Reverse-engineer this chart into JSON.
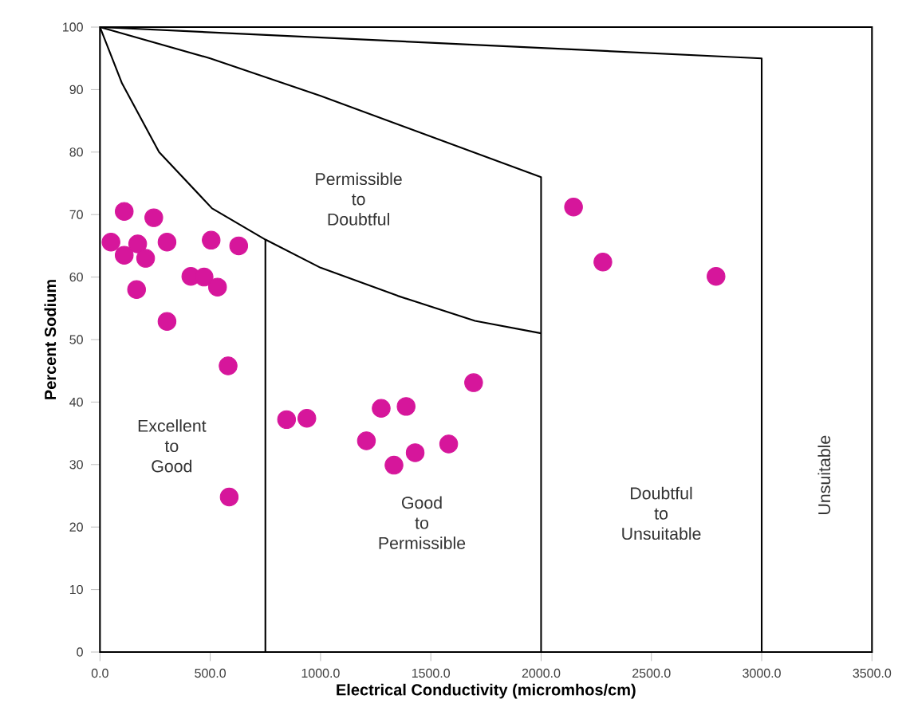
{
  "chart_data": {
    "type": "scatter",
    "xlabel": "Electrical Conductivity (micromhos/cm)",
    "ylabel": "Percent Sodium",
    "xlim": [
      0,
      3500
    ],
    "ylim": [
      0,
      100
    ],
    "xticks": [
      {
        "value": 0,
        "label": "0.0"
      },
      {
        "value": 500,
        "label": "500.0"
      },
      {
        "value": 1000,
        "label": "1000.0"
      },
      {
        "value": 1500,
        "label": "1500.0"
      },
      {
        "value": 2000,
        "label": "2000.0"
      },
      {
        "value": 2500,
        "label": "2500.0"
      },
      {
        "value": 3000,
        "label": "3000.0"
      },
      {
        "value": 3500,
        "label": "3500.0"
      }
    ],
    "yticks": [
      0,
      10,
      20,
      30,
      40,
      50,
      60,
      70,
      80,
      90,
      100
    ],
    "grid": false,
    "series": [
      {
        "color": "#d6169b",
        "marker": "circle",
        "x": [
          50,
          110,
          110,
          244,
          304,
          171,
          207,
          166,
          304,
          412,
          472,
          533,
          504,
          629,
          581,
          586,
          846,
          938,
          1208,
          1275,
          1388,
          1333,
          1429,
          1581,
          1694,
          2147,
          2280,
          2793
        ],
        "values": [
          65.6,
          70.5,
          63.5,
          69.5,
          65.6,
          65.3,
          63,
          58,
          52.9,
          60.1,
          60,
          58.4,
          65.9,
          65,
          45.8,
          24.8,
          37.2,
          37.4,
          33.8,
          39,
          39.3,
          29.9,
          31.9,
          33.3,
          43.1,
          71.2,
          62.4,
          60.1
        ]
      },
      {
        "type": "line",
        "color": "#000000",
        "marker": "none",
        "x": [
          0,
          100,
          268,
          508,
          750,
          1000,
          1350,
          1700,
          2000
        ],
        "values": [
          100,
          91,
          80,
          71,
          66,
          61.5,
          57,
          53,
          51
        ]
      },
      {
        "type": "line",
        "color": "#000000",
        "marker": "none",
        "x": [
          0,
          500,
          1000,
          1500,
          2000,
          2000
        ],
        "values": [
          100,
          95,
          89,
          82.5,
          76,
          0
        ]
      },
      {
        "type": "line",
        "color": "#000000",
        "marker": "none",
        "x": [
          0,
          3000,
          3000
        ],
        "values": [
          100,
          95,
          0
        ]
      },
      {
        "type": "line",
        "color": "#000000",
        "marker": "none",
        "x": [
          750,
          750
        ],
        "values": [
          0,
          66
        ]
      }
    ],
    "annotations": [
      "Excellent to Good",
      "Permissible to Doubtful",
      "Good to Permissible",
      "Doubtful to Unsuitable",
      "Unsuitable"
    ]
  }
}
